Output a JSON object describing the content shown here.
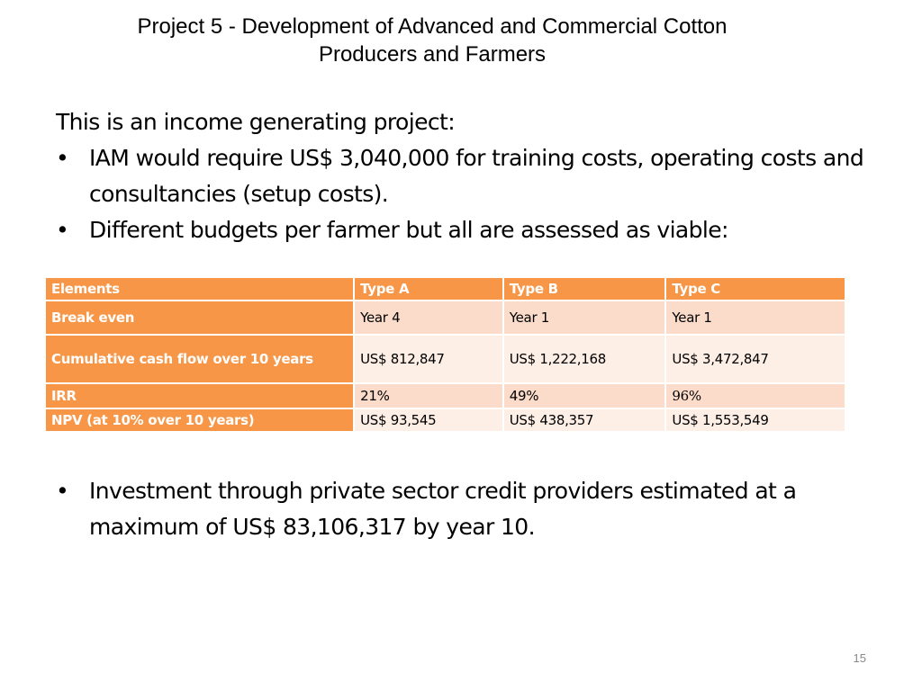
{
  "title": {
    "line1": "Project 5 - Development of Advanced and Commercial Cotton",
    "line2": "Producers and Farmers"
  },
  "body": {
    "intro": "This is an income generating project:",
    "bullet_symbol": "•",
    "bullets": [
      "IAM would require US$ 3,040,000 for training costs, operating costs and consultancies (setup costs).",
      "Different budgets per farmer but all are assessed as viable:"
    ]
  },
  "table": {
    "headers": [
      "Elements",
      "Type A",
      "Type B",
      "Type C"
    ],
    "rows": [
      {
        "label": "Break even",
        "cells": [
          "Year 4",
          "Year 1",
          "Year 1"
        ]
      },
      {
        "label": "Cumulative cash flow over 10 years",
        "cells": [
          "US$ 812,847",
          "US$ 1,222,168",
          "US$ 3,472,847"
        ]
      },
      {
        "label": "IRR",
        "cells": [
          "21%",
          "49%",
          "96%"
        ]
      },
      {
        "label": "NPV (at 10% over 10 years)",
        "cells": [
          "US$ 93,545",
          "US$ 438,357",
          "US$ 1,553,549"
        ]
      }
    ]
  },
  "closing_bullet": "Investment through private sector credit providers estimated at a maximum of US$ 83,106,317 by year 10.",
  "page_number": "15",
  "colors": {
    "header_fill": "#f79646",
    "row_fill_odd": "#fbdcca",
    "row_fill_even": "#fdeee6",
    "header_text": "#ffffff"
  }
}
